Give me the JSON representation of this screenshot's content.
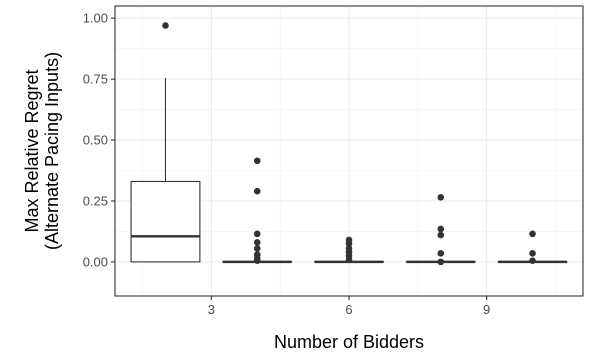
{
  "chart_data": {
    "type": "boxplot",
    "xlabel": "Number of Bidders",
    "ylabel_lines": [
      "Max Relative Regret",
      "(Alternate Pacing Inputs)"
    ],
    "x_ticks": [
      3,
      6,
      9
    ],
    "y_ticks": [
      0.0,
      0.25,
      0.5,
      0.75,
      1.0
    ],
    "y_tick_labels": [
      "0.00",
      "0.25",
      "0.50",
      "0.75",
      "1.00"
    ],
    "xlim": [
      0.9,
      11.1
    ],
    "ylim": [
      -0.14,
      1.05
    ],
    "grid": true,
    "groups": [
      {
        "x": 2,
        "min": 0.0,
        "q1": 0.0,
        "median": 0.105,
        "q3": 0.33,
        "max": 0.755,
        "outliers": [
          0.97
        ]
      },
      {
        "x": 4,
        "min": 0.0,
        "q1": 0.0,
        "median": 0.0,
        "q3": 0.0,
        "max": 0.0,
        "outliers": [
          0.415,
          0.29,
          0.115,
          0.08,
          0.055,
          0.03,
          0.015,
          0.005
        ]
      },
      {
        "x": 6,
        "min": 0.0,
        "q1": 0.0,
        "median": 0.0,
        "q3": 0.0,
        "max": 0.0,
        "outliers": [
          0.09,
          0.075,
          0.055,
          0.04,
          0.025,
          0.01
        ]
      },
      {
        "x": 8,
        "min": 0.0,
        "q1": 0.0,
        "median": 0.0,
        "q3": 0.0,
        "max": 0.0,
        "outliers": [
          0.265,
          0.135,
          0.11,
          0.035,
          0.0
        ]
      },
      {
        "x": 10,
        "min": 0.0,
        "q1": 0.0,
        "median": 0.0,
        "q3": 0.0,
        "max": 0.0,
        "outliers": [
          0.115,
          0.035,
          0.005
        ]
      }
    ],
    "colors": {
      "box_fill": "#ffffff",
      "box_stroke": "#333333",
      "point": "#333333",
      "grid_major": "#ebebeb",
      "grid_minor": "#f2f2f2",
      "panel_border": "#333333"
    }
  }
}
